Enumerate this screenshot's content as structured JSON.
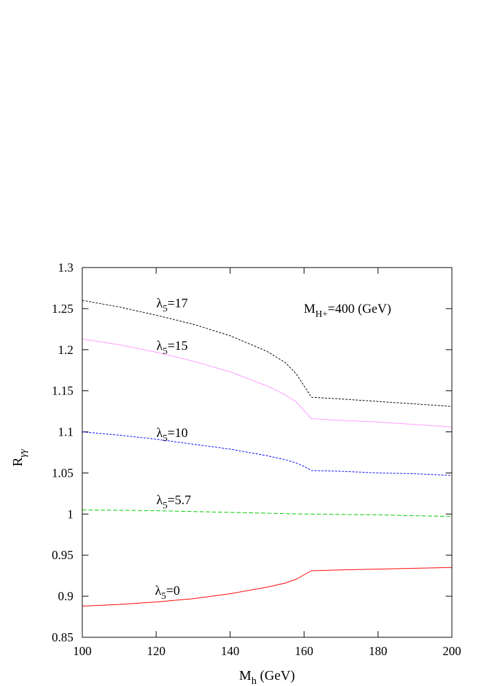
{
  "chart_data": {
    "type": "line",
    "title": "",
    "xlabel": {
      "main": "M",
      "sub": "h",
      "suffix": " (GeV)"
    },
    "ylabel": {
      "main": "R",
      "sub": "γγ"
    },
    "xlim": [
      100,
      200
    ],
    "ylim": [
      0.85,
      1.3
    ],
    "x_ticks": [
      100,
      120,
      140,
      160,
      180,
      200
    ],
    "y_ticks": [
      "0.85",
      "0.9",
      "0.95",
      "1",
      "1.05",
      "1.1",
      "1.15",
      "1.2",
      "1.25",
      "1.3"
    ],
    "grid": false,
    "annotation": {
      "main": "M",
      "sub": "H+",
      "suffix": "=400 (GeV)"
    },
    "series": [
      {
        "label": {
          "main": "λ",
          "sub": "5",
          "suffix": "=17"
        },
        "color": "#000000",
        "style": "dashed-fine",
        "x": [
          100,
          110,
          120,
          130,
          140,
          150,
          155,
          158,
          160,
          162,
          170,
          180,
          190,
          200
        ],
        "y": [
          1.26,
          1.252,
          1.242,
          1.231,
          1.217,
          1.198,
          1.184,
          1.17,
          1.156,
          1.142,
          1.14,
          1.137,
          1.134,
          1.131
        ]
      },
      {
        "label": {
          "main": "λ",
          "sub": "5",
          "suffix": "=15"
        },
        "color": "#ff00ff",
        "style": "dotted",
        "x": [
          100,
          110,
          120,
          130,
          140,
          150,
          155,
          158,
          160,
          162,
          170,
          180,
          190,
          200
        ],
        "y": [
          1.213,
          1.206,
          1.197,
          1.186,
          1.173,
          1.156,
          1.145,
          1.136,
          1.126,
          1.116,
          1.114,
          1.112,
          1.109,
          1.106
        ]
      },
      {
        "label": {
          "main": "λ",
          "sub": "5",
          "suffix": "=10"
        },
        "color": "#0000ff",
        "style": "dashed",
        "x": [
          100,
          110,
          120,
          130,
          140,
          150,
          155,
          158,
          160,
          162,
          170,
          180,
          190,
          200
        ],
        "y": [
          1.1,
          1.096,
          1.091,
          1.085,
          1.079,
          1.071,
          1.066,
          1.062,
          1.058,
          1.053,
          1.052,
          1.05,
          1.049,
          1.047
        ]
      },
      {
        "label": {
          "main": "λ",
          "sub": "5",
          "suffix": "=5.7"
        },
        "color": "#00cc00",
        "style": "long-dashed",
        "x": [
          100,
          120,
          140,
          160,
          180,
          200
        ],
        "y": [
          1.005,
          1.004,
          1.002,
          1.0,
          0.999,
          0.997
        ]
      },
      {
        "label": {
          "main": "λ",
          "sub": "5",
          "suffix": "=0"
        },
        "color": "#ff0000",
        "style": "solid",
        "x": [
          100,
          110,
          120,
          130,
          140,
          150,
          155,
          158,
          160,
          162,
          170,
          180,
          190,
          200
        ],
        "y": [
          0.888,
          0.89,
          0.893,
          0.897,
          0.903,
          0.911,
          0.916,
          0.921,
          0.926,
          0.931,
          0.932,
          0.933,
          0.934,
          0.935
        ]
      }
    ]
  }
}
